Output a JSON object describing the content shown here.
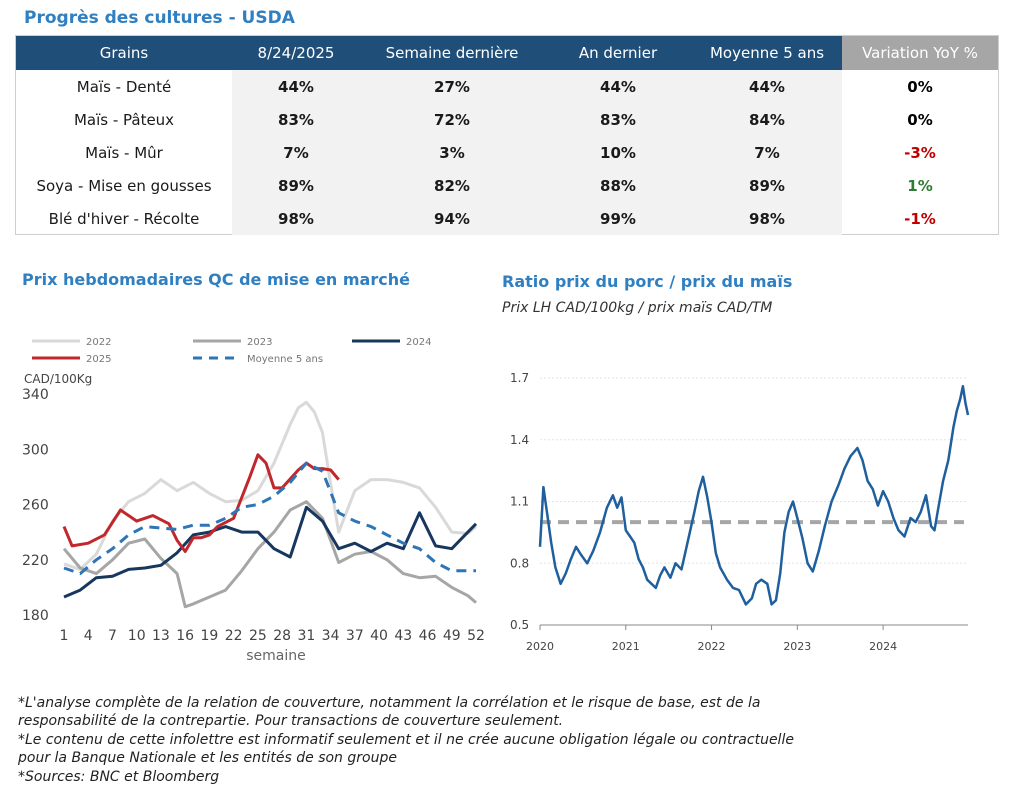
{
  "header": {
    "title": "Progrès des cultures - USDA"
  },
  "crop_table": {
    "columns": [
      "Grains",
      "8/24/2025",
      "Semaine dernière",
      "An dernier",
      "Moyenne 5 ans",
      "Variation YoY %"
    ],
    "rows": [
      {
        "name": "Maïs - Denté",
        "cur": "44%",
        "last_week": "27%",
        "last_year": "44%",
        "avg5": "44%",
        "yoy": "0%",
        "yoy_color": "#000000"
      },
      {
        "name": "Maïs - Pâteux",
        "cur": "83%",
        "last_week": "72%",
        "last_year": "83%",
        "avg5": "84%",
        "yoy": "0%",
        "yoy_color": "#000000"
      },
      {
        "name": "Maïs - Mûr",
        "cur": "7%",
        "last_week": "3%",
        "last_year": "10%",
        "avg5": "7%",
        "yoy": "-3%",
        "yoy_color": "#c00000"
      },
      {
        "name": "Soya - Mise en gousses",
        "cur": "89%",
        "last_week": "82%",
        "last_year": "88%",
        "avg5": "89%",
        "yoy": "1%",
        "yoy_color": "#2e7d32"
      },
      {
        "name": "Blé d'hiver - Récolte",
        "cur": "98%",
        "last_week": "94%",
        "last_year": "99%",
        "avg5": "98%",
        "yoy": "-1%",
        "yoy_color": "#c00000"
      }
    ]
  },
  "left_panel": {
    "title": "Prix hebdomadaires QC de mise en marché"
  },
  "right_panel": {
    "title": "Ratio prix du porc / prix du maïs",
    "subtitle": "Prix LH CAD/100kg / prix maïs CAD/TM"
  },
  "notes": [
    "*L'analyse complète de la relation de couverture, notamment la corrélation et le risque de base, est de la",
    "responsabilité de la contrepartie. Pour transactions de couverture seulement.",
    "*Le contenu de cette infolettre est informatif seulement et il ne crée aucune obligation légale ou contractuelle",
    "pour la Banque Nationale et les entités de son groupe",
    "*Sources: BNC et Bloomberg"
  ],
  "chart_data": [
    {
      "type": "line",
      "title": "",
      "xlabel": "semaine",
      "ylabel": "CAD/100Kg",
      "xlim": [
        1,
        52
      ],
      "ylim": [
        180,
        340
      ],
      "xticks": [
        "1",
        "4",
        "7",
        "10",
        "13",
        "16",
        "19",
        "22",
        "25",
        "28",
        "31",
        "34",
        "37",
        "40",
        "43",
        "46",
        "49",
        "52"
      ],
      "yticks": [
        "180",
        "220",
        "260",
        "300",
        "340"
      ],
      "legend_position": "top",
      "series": [
        {
          "name": "2022",
          "color": "#d9d9d9",
          "dash": false,
          "width": 3,
          "x": [
            1,
            3,
            5,
            7,
            9,
            11,
            13,
            15,
            17,
            19,
            21,
            23,
            25,
            27,
            29,
            30,
            31,
            32,
            33,
            34,
            35,
            37,
            39,
            41,
            43,
            45,
            47,
            49,
            51,
            52
          ],
          "y": [
            217,
            213,
            224,
            248,
            262,
            268,
            278,
            270,
            276,
            268,
            262,
            263,
            270,
            290,
            318,
            330,
            334,
            327,
            312,
            275,
            240,
            270,
            278,
            278,
            276,
            272,
            258,
            240,
            239,
            244
          ]
        },
        {
          "name": "2023",
          "color": "#a6a6a6",
          "dash": false,
          "width": 3,
          "x": [
            1,
            3,
            5,
            7,
            9,
            11,
            13,
            15,
            16,
            17,
            19,
            21,
            23,
            25,
            27,
            29,
            31,
            33,
            35,
            37,
            39,
            41,
            43,
            45,
            47,
            49,
            51,
            52
          ],
          "y": [
            228,
            214,
            210,
            220,
            232,
            235,
            221,
            210,
            186,
            188,
            193,
            198,
            212,
            228,
            240,
            256,
            262,
            250,
            218,
            224,
            226,
            220,
            210,
            207,
            208,
            200,
            194,
            189
          ]
        },
        {
          "name": "2024",
          "color": "#17375e",
          "dash": false,
          "width": 3,
          "x": [
            1,
            3,
            5,
            7,
            9,
            11,
            13,
            15,
            17,
            19,
            21,
            23,
            25,
            27,
            29,
            31,
            33,
            35,
            37,
            39,
            41,
            43,
            45,
            47,
            49,
            51,
            52
          ],
          "y": [
            193,
            198,
            207,
            208,
            213,
            214,
            216,
            225,
            238,
            240,
            244,
            240,
            240,
            228,
            222,
            258,
            248,
            228,
            232,
            226,
            232,
            228,
            254,
            230,
            228,
            240,
            246
          ]
        },
        {
          "name": "2025",
          "color": "#c0282d",
          "dash": false,
          "width": 3,
          "x": [
            1,
            2,
            4,
            6,
            8,
            10,
            12,
            14,
            15,
            16,
            17,
            18,
            19,
            20,
            22,
            24,
            25,
            26,
            27,
            28,
            30,
            31,
            32,
            33,
            34,
            35
          ],
          "y": [
            244,
            230,
            232,
            238,
            256,
            248,
            252,
            246,
            234,
            226,
            236,
            236,
            238,
            244,
            250,
            280,
            296,
            290,
            272,
            272,
            285,
            290,
            286,
            286,
            285,
            278
          ]
        },
        {
          "name": "Moyenne 5 ans",
          "color": "#2e75b6",
          "dash": true,
          "width": 3,
          "x": [
            1,
            3,
            5,
            7,
            9,
            11,
            13,
            15,
            17,
            19,
            21,
            23,
            25,
            27,
            29,
            31,
            33,
            35,
            37,
            39,
            41,
            43,
            45,
            47,
            49,
            51,
            52
          ],
          "y": [
            214,
            210,
            220,
            228,
            238,
            244,
            243,
            242,
            245,
            245,
            250,
            258,
            260,
            266,
            276,
            290,
            284,
            254,
            248,
            244,
            238,
            232,
            228,
            218,
            212,
            212,
            212
          ]
        }
      ]
    },
    {
      "type": "line",
      "title": "",
      "xlabel": "",
      "ylabel": "",
      "xlim": [
        2020.0,
        2024.99
      ],
      "ylim": [
        0.5,
        1.7
      ],
      "xticks": [
        "2020",
        "2021",
        "2022",
        "2023",
        "2024"
      ],
      "yticks": [
        "0.5",
        "0.8",
        "1.1",
        "1.4",
        "1.7"
      ],
      "grid": true,
      "reference_line": {
        "y": 1.0,
        "color": "#a6a6a6",
        "dash": true
      },
      "series": [
        {
          "name": "",
          "color": "#1f5f9e",
          "x": [
            2020.0,
            2020.04,
            2020.08,
            2020.13,
            2020.18,
            2020.24,
            2020.3,
            2020.36,
            2020.42,
            2020.48,
            2020.55,
            2020.62,
            2020.7,
            2020.78,
            2020.85,
            2020.9,
            2020.95,
            2021.0,
            2021.05,
            2021.1,
            2021.15,
            2021.2,
            2021.25,
            2021.3,
            2021.35,
            2021.4,
            2021.45,
            2021.52,
            2021.58,
            2021.65,
            2021.72,
            2021.8,
            2021.85,
            2021.9,
            2021.95,
            2022.0,
            2022.05,
            2022.1,
            2022.18,
            2022.25,
            2022.32,
            2022.4,
            2022.47,
            2022.52,
            2022.58,
            2022.65,
            2022.7,
            2022.75,
            2022.8,
            2022.85,
            2022.9,
            2022.95,
            2023.0,
            2023.06,
            2023.12,
            2023.18,
            2023.25,
            2023.32,
            2023.4,
            2023.48,
            2023.55,
            2023.62,
            2023.7,
            2023.76,
            2023.82,
            2023.88,
            2023.94,
            2024.0,
            2024.06,
            2024.12,
            2024.18,
            2024.25,
            2024.32,
            2024.38,
            2024.44,
            2024.5,
            2024.56,
            2024.6,
            2024.64,
            2024.7,
            2024.76,
            2024.82,
            2024.86,
            2024.9,
            2024.93,
            2024.96,
            2024.99
          ],
          "y": [
            0.88,
            1.17,
            1.05,
            0.9,
            0.78,
            0.7,
            0.75,
            0.82,
            0.88,
            0.84,
            0.8,
            0.86,
            0.95,
            1.07,
            1.13,
            1.07,
            1.12,
            0.96,
            0.93,
            0.9,
            0.82,
            0.78,
            0.72,
            0.7,
            0.68,
            0.74,
            0.78,
            0.73,
            0.8,
            0.77,
            0.9,
            1.05,
            1.15,
            1.22,
            1.12,
            1.0,
            0.85,
            0.78,
            0.72,
            0.68,
            0.67,
            0.6,
            0.63,
            0.7,
            0.72,
            0.7,
            0.6,
            0.62,
            0.75,
            0.95,
            1.05,
            1.1,
            1.02,
            0.92,
            0.8,
            0.76,
            0.86,
            0.98,
            1.1,
            1.18,
            1.26,
            1.32,
            1.36,
            1.3,
            1.2,
            1.16,
            1.08,
            1.15,
            1.1,
            1.02,
            0.96,
            0.93,
            1.02,
            1.0,
            1.05,
            1.13,
            0.98,
            0.96,
            1.06,
            1.2,
            1.3,
            1.46,
            1.54,
            1.6,
            1.66,
            1.58,
            1.52
          ]
        }
      ]
    }
  ]
}
